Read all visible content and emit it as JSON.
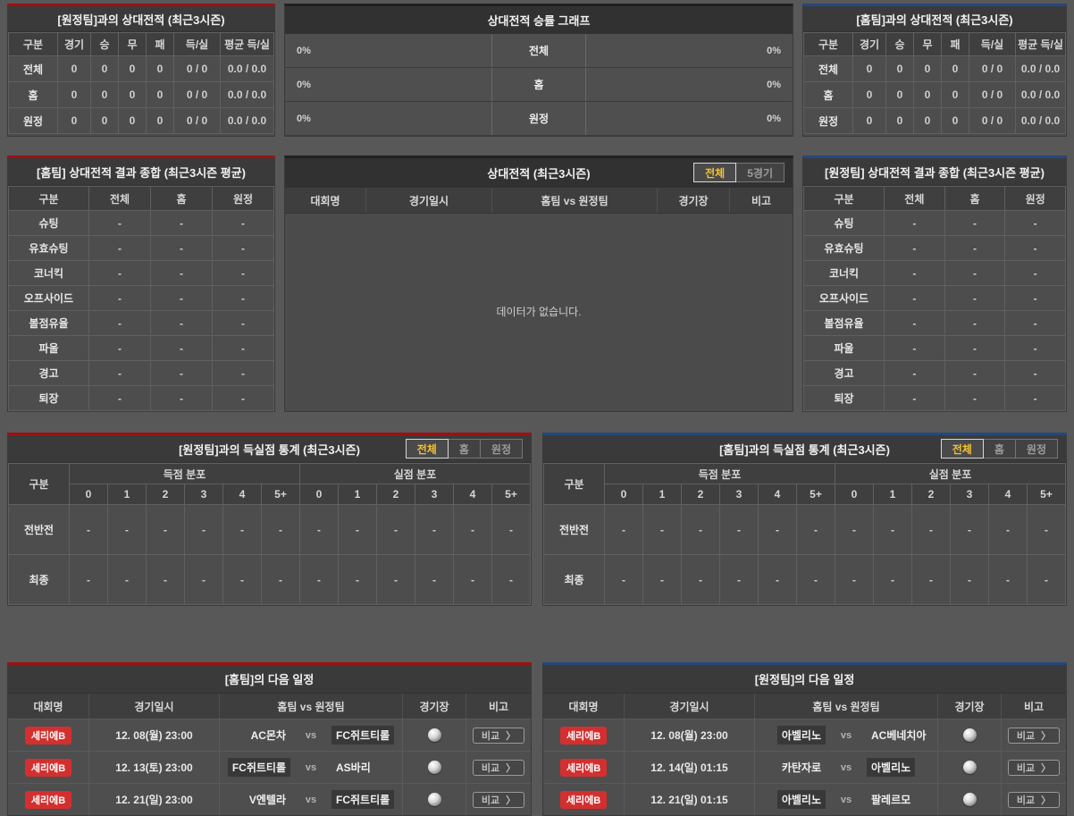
{
  "colors": {
    "accent_home_red": "#9b1114",
    "accent_away_blue": "#25477b",
    "tab_active_text": "#f3c132",
    "league_badge_red": "#d42f2f"
  },
  "shared": {
    "vs": "vs",
    "compare": "비교",
    "chevron": "〉"
  },
  "h2h_away": {
    "title": "[원정팀]과의 상대전적 (최근3시즌)",
    "headers": [
      "구분",
      "경기",
      "승",
      "무",
      "패",
      "득/실",
      "평균 득/실"
    ],
    "rows": [
      {
        "label": "전체",
        "values": [
          "0",
          "0",
          "0",
          "0",
          "0 / 0",
          "0.0 / 0.0"
        ]
      },
      {
        "label": "홈",
        "values": [
          "0",
          "0",
          "0",
          "0",
          "0 / 0",
          "0.0 / 0.0"
        ]
      },
      {
        "label": "원정",
        "values": [
          "0",
          "0",
          "0",
          "0",
          "0 / 0",
          "0.0 / 0.0"
        ]
      }
    ]
  },
  "win_graph": {
    "title": "상대전적 승률 그래프",
    "rows": [
      {
        "left": "0%",
        "label": "전체",
        "right": "0%"
      },
      {
        "left": "0%",
        "label": "홈",
        "right": "0%"
      },
      {
        "left": "0%",
        "label": "원정",
        "right": "0%"
      }
    ]
  },
  "h2h_home": {
    "title": "[홈팀]과의 상대전적 (최근3시즌)",
    "headers": [
      "구분",
      "경기",
      "승",
      "무",
      "패",
      "득/실",
      "평균 득/실"
    ],
    "rows": [
      {
        "label": "전체",
        "values": [
          "0",
          "0",
          "0",
          "0",
          "0 / 0",
          "0.0 / 0.0"
        ]
      },
      {
        "label": "홈",
        "values": [
          "0",
          "0",
          "0",
          "0",
          "0 / 0",
          "0.0 / 0.0"
        ]
      },
      {
        "label": "원정",
        "values": [
          "0",
          "0",
          "0",
          "0",
          "0 / 0",
          "0.0 / 0.0"
        ]
      }
    ]
  },
  "summary_home": {
    "title": "[홈팀] 상대전적 결과 종합 (최근3시즌 평균)",
    "headers": [
      "구분",
      "전체",
      "홈",
      "원정"
    ],
    "rows": [
      {
        "label": "슈팅",
        "values": [
          "-",
          "-",
          "-"
        ]
      },
      {
        "label": "유효슈팅",
        "values": [
          "-",
          "-",
          "-"
        ]
      },
      {
        "label": "코너킥",
        "values": [
          "-",
          "-",
          "-"
        ]
      },
      {
        "label": "오프사이드",
        "values": [
          "-",
          "-",
          "-"
        ]
      },
      {
        "label": "볼점유율",
        "values": [
          "-",
          "-",
          "-"
        ]
      },
      {
        "label": "파울",
        "values": [
          "-",
          "-",
          "-"
        ]
      },
      {
        "label": "경고",
        "values": [
          "-",
          "-",
          "-"
        ]
      },
      {
        "label": "퇴장",
        "values": [
          "-",
          "-",
          "-"
        ]
      }
    ]
  },
  "h2h_list": {
    "title": "상대전적 (최근3시즌)",
    "tabs": [
      {
        "label": "전체",
        "active": true
      },
      {
        "label": "5경기",
        "active": false
      }
    ],
    "headers": [
      "대회명",
      "경기일시",
      "홈팀  vs  원정팀",
      "경기장",
      "비고"
    ],
    "empty_message": "데이터가 없습니다."
  },
  "summary_away": {
    "title": "[원정팀] 상대전적 결과 종합 (최근3시즌 평균)",
    "headers": [
      "구분",
      "전체",
      "홈",
      "원정"
    ],
    "rows": [
      {
        "label": "슈팅",
        "values": [
          "-",
          "-",
          "-"
        ]
      },
      {
        "label": "유효슈팅",
        "values": [
          "-",
          "-",
          "-"
        ]
      },
      {
        "label": "코너킥",
        "values": [
          "-",
          "-",
          "-"
        ]
      },
      {
        "label": "오프사이드",
        "values": [
          "-",
          "-",
          "-"
        ]
      },
      {
        "label": "볼점유율",
        "values": [
          "-",
          "-",
          "-"
        ]
      },
      {
        "label": "파울",
        "values": [
          "-",
          "-",
          "-"
        ]
      },
      {
        "label": "경고",
        "values": [
          "-",
          "-",
          "-"
        ]
      },
      {
        "label": "퇴장",
        "values": [
          "-",
          "-",
          "-"
        ]
      }
    ]
  },
  "goals_away": {
    "title": "[원정팀]과의 득실점 통계 (최근3시즌)",
    "tabs": [
      {
        "label": "전체",
        "active": true
      },
      {
        "label": "홈",
        "active": false
      },
      {
        "label": "원정",
        "active": false
      }
    ],
    "col_label": "구분",
    "group_headers": [
      "득점 분포",
      "실점 분포"
    ],
    "sub_headers": [
      "0",
      "1",
      "2",
      "3",
      "4",
      "5+"
    ],
    "rows": [
      {
        "label": "전반전",
        "values": [
          "-",
          "-",
          "-",
          "-",
          "-",
          "-",
          "-",
          "-",
          "-",
          "-",
          "-",
          "-"
        ]
      },
      {
        "label": "최종",
        "values": [
          "-",
          "-",
          "-",
          "-",
          "-",
          "-",
          "-",
          "-",
          "-",
          "-",
          "-",
          "-"
        ]
      }
    ]
  },
  "goals_home": {
    "title": "[홈팀]과의 득실점 통계 (최근3시즌)",
    "tabs": [
      {
        "label": "전체",
        "active": true
      },
      {
        "label": "홈",
        "active": false
      },
      {
        "label": "원정",
        "active": false
      }
    ],
    "col_label": "구분",
    "group_headers": [
      "득점 분포",
      "실점 분포"
    ],
    "sub_headers": [
      "0",
      "1",
      "2",
      "3",
      "4",
      "5+"
    ],
    "rows": [
      {
        "label": "전반전",
        "values": [
          "-",
          "-",
          "-",
          "-",
          "-",
          "-",
          "-",
          "-",
          "-",
          "-",
          "-",
          "-"
        ]
      },
      {
        "label": "최종",
        "values": [
          "-",
          "-",
          "-",
          "-",
          "-",
          "-",
          "-",
          "-",
          "-",
          "-",
          "-",
          "-"
        ]
      }
    ]
  },
  "schedule_home": {
    "title": "[홈팀]의 다음 일정",
    "headers": [
      "대회명",
      "경기일시",
      "홈팀  vs  원정팀",
      "경기장",
      "비고"
    ],
    "rows": [
      {
        "league": "세리에B",
        "datetime": "12. 08(월) 23:00",
        "home": "AC몬차",
        "away": "FC쥐트티롤",
        "home_hl": false,
        "away_hl": true
      },
      {
        "league": "세리에B",
        "datetime": "12. 13(토) 23:00",
        "home": "FC쥐트티롤",
        "away": "AS바리",
        "home_hl": true,
        "away_hl": false
      },
      {
        "league": "세리에B",
        "datetime": "12. 21(일) 23:00",
        "home": "V엔텔라",
        "away": "FC쥐트티롤",
        "home_hl": false,
        "away_hl": true
      }
    ]
  },
  "schedule_away": {
    "title": "[원정팀]의 다음 일정",
    "headers": [
      "대회명",
      "경기일시",
      "홈팀  vs  원정팀",
      "경기장",
      "비고"
    ],
    "rows": [
      {
        "league": "세리에B",
        "datetime": "12. 08(월) 23:00",
        "home": "아벨리노",
        "away": "AC베네치아",
        "home_hl": true,
        "away_hl": false
      },
      {
        "league": "세리에B",
        "datetime": "12. 14(일) 01:15",
        "home": "카탄자로",
        "away": "아벨리노",
        "home_hl": false,
        "away_hl": true
      },
      {
        "league": "세리에B",
        "datetime": "12. 21(일) 01:15",
        "home": "아벨리노",
        "away": "팔레르모",
        "home_hl": true,
        "away_hl": false
      }
    ]
  }
}
